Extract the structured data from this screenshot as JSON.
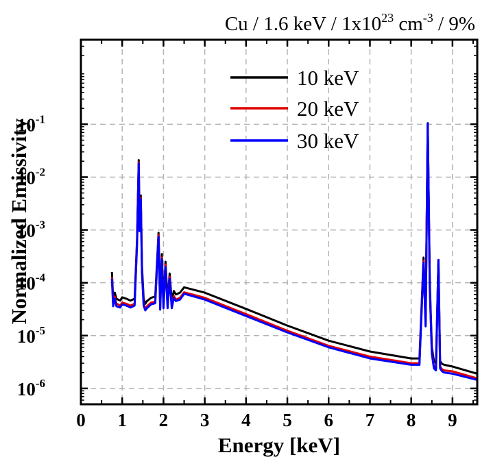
{
  "chart_data": {
    "type": "line",
    "title": {
      "prefix": "Cu / 1.6 keV / 1x10",
      "exponent": "23",
      "middle": " cm",
      "middle_exponent": "-3",
      "suffix": " / 9%"
    },
    "xlabel": "Energy [keV]",
    "ylabel": "Normalized Emissivity",
    "xlim": [
      0,
      9.6
    ],
    "ylim_log10": [
      -6.3,
      0.6
    ],
    "y_scale": "log",
    "grid": true,
    "legend_position": "top-center",
    "x_ticks": [
      "0",
      "1",
      "2",
      "3",
      "4",
      "5",
      "6",
      "7",
      "8",
      "9"
    ],
    "y_ticks": [
      {
        "base": "10",
        "exp": "-6"
      },
      {
        "base": "10",
        "exp": "-5"
      },
      {
        "base": "10",
        "exp": "-4"
      },
      {
        "base": "10",
        "exp": "-3"
      },
      {
        "base": "10",
        "exp": "-2"
      },
      {
        "base": "10",
        "exp": "-1"
      }
    ],
    "series": [
      {
        "name": "10 keV",
        "color": "#000000",
        "continuum_offset_log10": 0.0,
        "x": [
          0.75,
          0.78,
          0.82,
          0.86,
          0.9,
          0.95,
          1.0,
          1.1,
          1.2,
          1.3,
          1.36,
          1.4,
          1.42,
          1.45,
          1.48,
          1.52,
          1.56,
          1.6,
          1.7,
          1.8,
          1.88,
          1.92,
          1.96,
          2.0,
          2.05,
          2.1,
          2.15,
          2.2,
          2.25,
          2.3,
          2.4,
          2.5,
          3.0,
          4.0,
          5.0,
          6.0,
          7.0,
          8.0,
          8.2,
          8.3,
          8.35,
          8.4,
          8.45,
          8.5,
          8.55,
          8.6,
          8.66,
          8.7,
          8.75,
          8.8,
          9.0,
          9.6
        ],
        "y": [
          0.00016,
          5e-05,
          6.5e-05,
          5e-05,
          4.8e-05,
          4.6e-05,
          5.3e-05,
          5e-05,
          4.6e-05,
          5e-05,
          0.0007,
          0.021,
          0.0012,
          0.0045,
          0.0002,
          5e-05,
          4e-05,
          4.5e-05,
          5.2e-05,
          5.5e-05,
          0.00088,
          4.2e-05,
          0.00035,
          4.5e-05,
          0.00025,
          4.5e-05,
          0.00015,
          4.5e-05,
          7e-05,
          6e-05,
          6.5e-05,
          8.2e-05,
          6.5e-05,
          3.2e-05,
          1.55e-05,
          8e-06,
          5e-06,
          3.7e-06,
          3.7e-06,
          0.0003,
          2e-05,
          0.105,
          0.0001,
          6e-06,
          3.3e-06,
          3e-06,
          0.00027,
          3.3e-06,
          2.9e-06,
          2.8e-06,
          2.6e-06,
          1.9e-06
        ]
      },
      {
        "name": "20 keV",
        "color": "#e00000",
        "continuum_offset_log10": -0.1,
        "x": [
          0.75,
          0.78,
          0.82,
          0.86,
          0.9,
          0.95,
          1.0,
          1.1,
          1.2,
          1.3,
          1.36,
          1.4,
          1.42,
          1.45,
          1.48,
          1.52,
          1.56,
          1.6,
          1.7,
          1.8,
          1.88,
          1.92,
          1.96,
          2.0,
          2.05,
          2.1,
          2.15,
          2.2,
          2.25,
          2.3,
          2.4,
          2.5,
          3.0,
          4.0,
          5.0,
          6.0,
          7.0,
          8.0,
          8.2,
          8.3,
          8.35,
          8.4,
          8.45,
          8.5,
          8.55,
          8.6,
          8.66,
          8.7,
          8.75,
          8.8,
          9.0,
          9.6
        ],
        "y": [
          0.00013,
          4e-05,
          5.5e-05,
          4e-05,
          3.9e-05,
          3.7e-05,
          4.2e-05,
          4e-05,
          3.7e-05,
          4e-05,
          0.0006,
          0.019,
          0.001,
          0.004,
          0.00016,
          4e-05,
          3.2e-05,
          3.6e-05,
          4.2e-05,
          4.4e-05,
          0.0008,
          3.4e-05,
          0.0003,
          3.6e-05,
          0.00022,
          3.6e-05,
          0.00013,
          3.6e-05,
          5.6e-05,
          4.8e-05,
          5.2e-05,
          6.6e-05,
          5.2e-05,
          2.55e-05,
          1.24e-05,
          6.4e-06,
          4e-06,
          3e-06,
          3e-06,
          0.00026,
          1.6e-05,
          0.1,
          8e-05,
          4.8e-06,
          2.6e-06,
          2.4e-06,
          0.00026,
          2.6e-06,
          2.3e-06,
          2.2e-06,
          2.1e-06,
          1.55e-06
        ]
      },
      {
        "name": "30 keV",
        "color": "#0000ff",
        "continuum_offset_log10": -0.13,
        "x": [
          0.75,
          0.78,
          0.82,
          0.86,
          0.9,
          0.95,
          1.0,
          1.1,
          1.2,
          1.3,
          1.36,
          1.4,
          1.42,
          1.45,
          1.48,
          1.52,
          1.56,
          1.6,
          1.7,
          1.8,
          1.88,
          1.92,
          1.96,
          2.0,
          2.05,
          2.1,
          2.15,
          2.2,
          2.25,
          2.3,
          2.4,
          2.5,
          3.0,
          4.0,
          5.0,
          6.0,
          7.0,
          8.0,
          8.2,
          8.3,
          8.35,
          8.4,
          8.45,
          8.5,
          8.55,
          8.6,
          8.66,
          8.7,
          8.75,
          8.8,
          9.0,
          9.6
        ],
        "y": [
          0.00012,
          3.6e-05,
          5e-05,
          3.6e-05,
          3.5e-05,
          3.4e-05,
          3.9e-05,
          3.7e-05,
          3.4e-05,
          3.7e-05,
          0.00055,
          0.018,
          0.00095,
          0.0038,
          0.00015,
          3.7e-05,
          3e-05,
          3.3e-05,
          3.9e-05,
          4.1e-05,
          0.00075,
          3.1e-05,
          0.00028,
          3.3e-05,
          0.0002,
          3.3e-05,
          0.00012,
          3.3e-05,
          5.2e-05,
          4.5e-05,
          4.8e-05,
          6.2e-05,
          4.8e-05,
          2.35e-05,
          1.15e-05,
          6e-06,
          3.7e-06,
          2.8e-06,
          2.8e-06,
          0.00024,
          1.5e-05,
          0.105,
          7.5e-05,
          4.5e-06,
          2.4e-06,
          2.2e-06,
          0.00027,
          2.4e-06,
          2.1e-06,
          2e-06,
          1.9e-06,
          1.45e-06
        ]
      }
    ]
  }
}
